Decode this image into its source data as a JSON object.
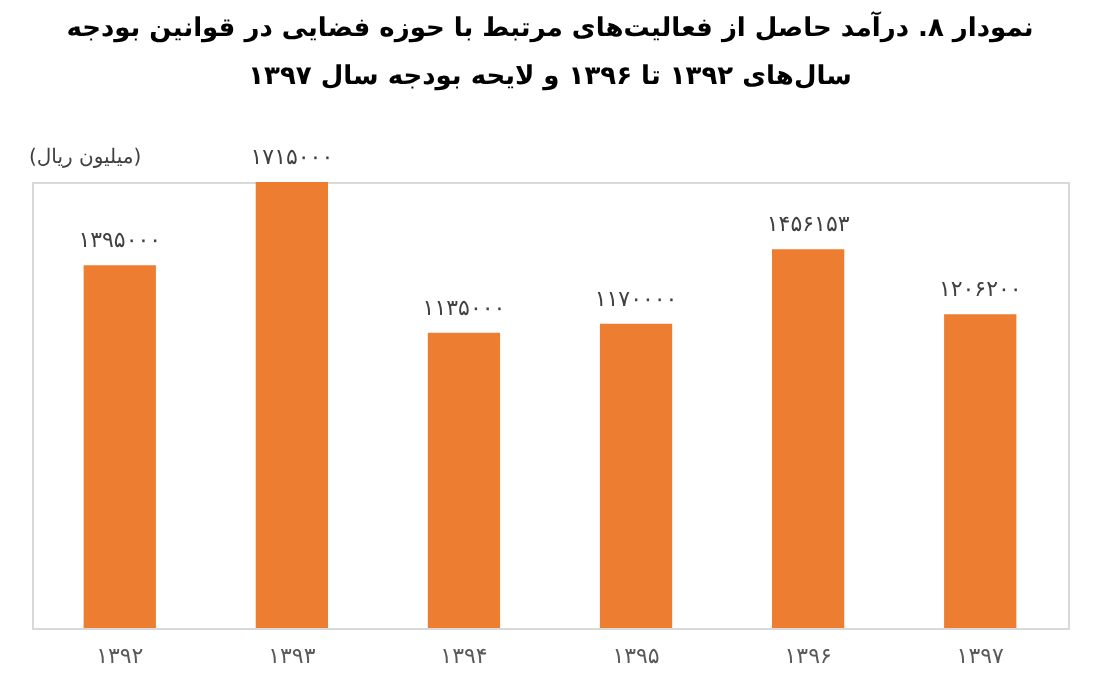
{
  "chart_data": {
    "type": "bar",
    "title": "نمودار ۸. درآمد حاصل از فعالیت‌های مرتبط با حوزه فضایی در قوانین بودجه\nسال‌های ۱۳۹۲ تا ۱۳۹۶ و لایحه بودجه سال ۱۳۹۷",
    "ylabel": "(میلیون ریال)",
    "categories": [
      "۱۳۹۲",
      "۱۳۹۳",
      "۱۳۹۴",
      "۱۳۹۵",
      "۱۳۹۶",
      "۱۳۹۷"
    ],
    "values": [
      1395000,
      1715000,
      1135000,
      1170000,
      1456153,
      1206200
    ],
    "value_labels": [
      "۱۳۹۵۰۰۰",
      "۱۷۱۵۰۰۰",
      "۱۱۳۵۰۰۰",
      "۱۱۷۰۰۰۰",
      "۱۴۵۶۱۵۳",
      "۱۲۰۶۲۰۰"
    ],
    "color": "#ed7d31"
  }
}
